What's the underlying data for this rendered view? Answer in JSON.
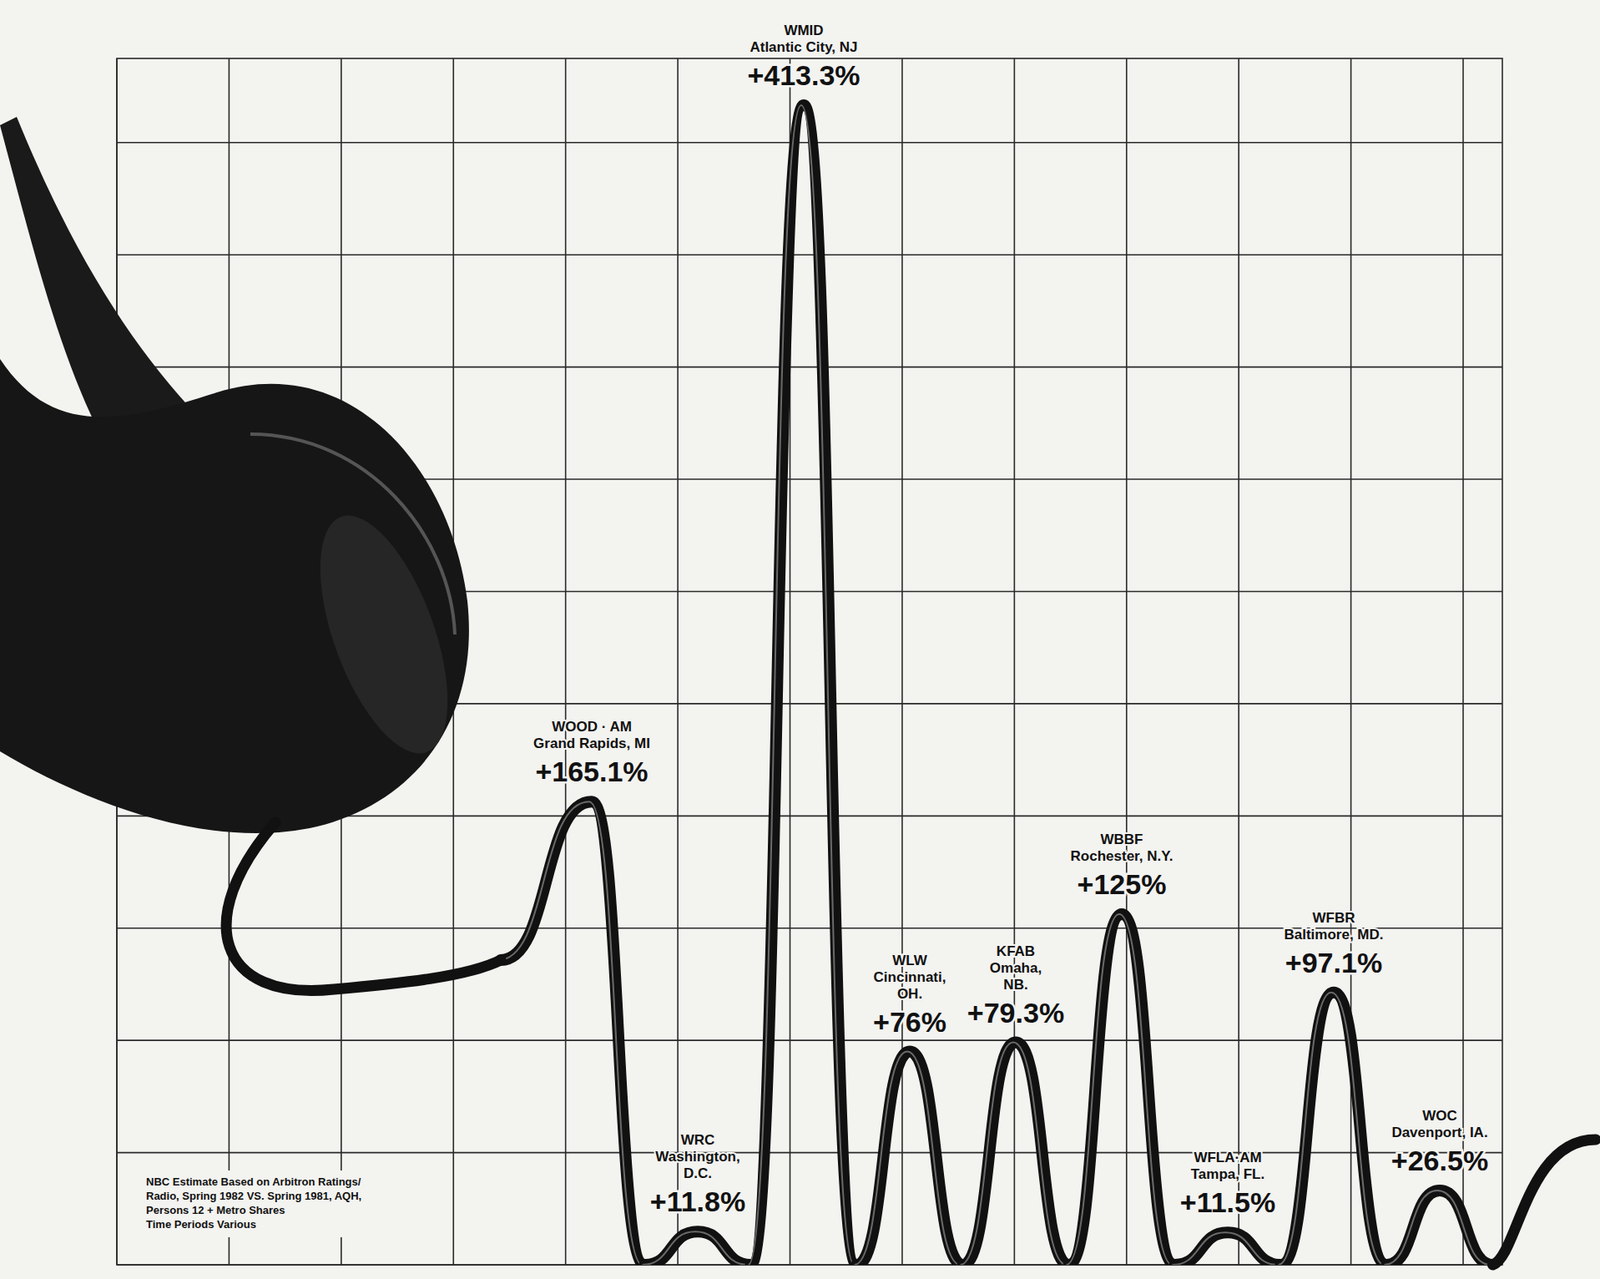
{
  "chart_data": {
    "type": "line",
    "categories": [
      "WOOD · AM\nGrand Rapids, MI",
      "WRC\nWashington,\nD.C.",
      "WMID\nAtlantic City, NJ",
      "WLW\nCincinnati,\nOH.",
      "KFAB\nOmaha,\nNB.",
      "WBBF\nRochester, N.Y.",
      "WFLA·AM\nTampa, FL.",
      "WFBR\nBaltimore, MD.",
      "WOC\nDavenport, IA."
    ],
    "values": [
      165.1,
      11.8,
      413.3,
      76,
      79.3,
      125,
      11.5,
      97.1,
      26.5
    ],
    "value_labels": [
      "+165.1%",
      "+11.8%",
      "+413.3%",
      "+76%",
      "+79.3%",
      "+125%",
      "+11.5%",
      "+97.1%",
      "+26.5%"
    ],
    "color": "#111111",
    "ylim": [
      0,
      430
    ],
    "yticks": [
      0,
      40,
      80,
      120,
      160,
      200,
      240,
      280,
      320,
      360,
      400
    ],
    "grid": true,
    "tick_labels": false,
    "data_labels": true,
    "annotations": [
      "NBC Estimate Based on Arbitron Ratings/",
      "Radio, Spring 1982 VS. Spring 1981, AQH,",
      "Persons 12 + Metro Shares",
      "Time Periods Various"
    ]
  }
}
